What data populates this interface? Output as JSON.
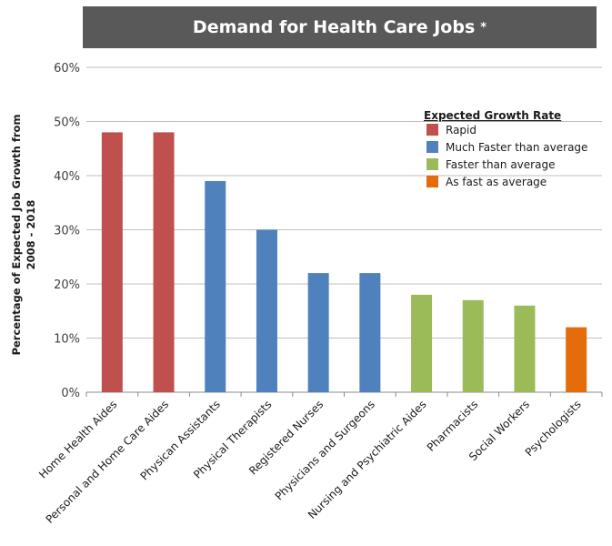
{
  "banner": {
    "title": "Demand for Health Care Jobs",
    "mark": "*"
  },
  "chart_data": {
    "type": "bar",
    "title": "Demand for Health Care Jobs *",
    "ylabel_line1": "Percentage of Expected Job Growth from",
    "ylabel_line2": "2008 - 2018",
    "ylim": [
      0,
      60
    ],
    "yticks": [
      0,
      10,
      20,
      30,
      40,
      50,
      60
    ],
    "ytick_labels": [
      "0%",
      "10%",
      "20%",
      "30%",
      "40%",
      "50%",
      "60%"
    ],
    "grid": true,
    "legend_position": "top-right",
    "legend_title": "Expected Growth Rate",
    "legend": [
      {
        "label": "Rapid",
        "color": "#c0504d"
      },
      {
        "label": "Much Faster than average",
        "color": "#4f81bd"
      },
      {
        "label": "Faster than average",
        "color": "#9bbb59"
      },
      {
        "label": "As fast as average",
        "color": "#e46c0a"
      }
    ],
    "categories": [
      "Home Health Aides",
      "Personal and Home Care Aides",
      "Physican Assistants",
      "Physical Therapists",
      "Registered Nurses",
      "Physicians and Surgeons",
      "Nursing and Psychiatric Aides",
      "Pharmacists",
      "Social Workers",
      "Psychologists"
    ],
    "values": [
      48,
      48,
      39,
      30,
      22,
      22,
      18,
      17,
      16,
      12
    ],
    "groups": [
      0,
      0,
      1,
      1,
      1,
      1,
      2,
      2,
      2,
      3
    ]
  }
}
